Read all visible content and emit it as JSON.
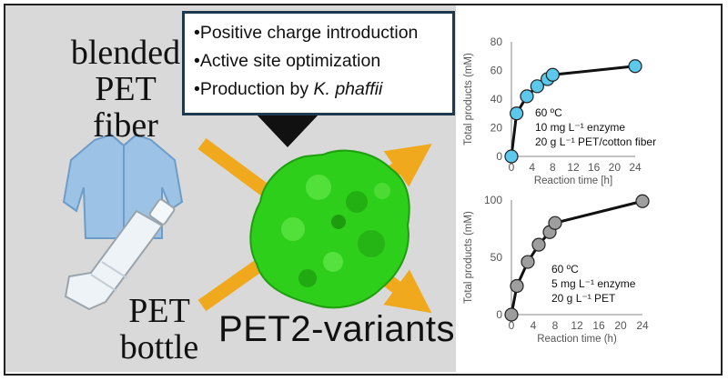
{
  "labels": {
    "blended_pet_fiber": [
      "blended",
      "PET",
      "fiber"
    ],
    "pet_bottle": [
      "PET",
      "bottle"
    ]
  },
  "callout": {
    "lines": [
      {
        "prefix": "•Positive charge introduction",
        "italic": ""
      },
      {
        "prefix": "•Active site optimization",
        "italic": ""
      },
      {
        "prefix": "•Production by ",
        "italic": "K. phaffii"
      }
    ]
  },
  "title": "PET2-variants",
  "colors": {
    "panel_bg": "#d9d9d9",
    "arrow": "#f0a91c",
    "enzyme": "#2ecf1a",
    "shirt": "#9cc3e6",
    "top_marker": "#5bc8ec",
    "bottom_marker": "#9e9e9e"
  },
  "icons": [
    "shirt-icon",
    "bottle-icon",
    "protein-surface-icon"
  ],
  "chart_data": [
    {
      "type": "line",
      "x": [
        0,
        1,
        3,
        5,
        7,
        8,
        24
      ],
      "values": [
        0,
        30,
        42,
        49,
        54,
        57,
        63
      ],
      "xlabel": "Reaction time [h]",
      "ylabel": "Total products  (mM)",
      "xticks": [
        0,
        4,
        8,
        12,
        16,
        20,
        24
      ],
      "yticks": [
        0,
        20,
        40,
        60,
        80
      ],
      "xlim": [
        0,
        24
      ],
      "ylim": [
        0,
        80
      ],
      "annotation": [
        "60 ºC",
        "10 mg L⁻¹ enzyme",
        "20 g L⁻¹ PET/cotton fiber"
      ],
      "marker_color": "#5bc8ec"
    },
    {
      "type": "line",
      "x": [
        0,
        1,
        3,
        5,
        7,
        8,
        24
      ],
      "values": [
        0,
        25,
        46,
        61,
        72,
        80,
        99
      ],
      "xlabel": "Reaction time (h)",
      "ylabel": "Total products (mM)",
      "xticks": [
        0,
        4,
        8,
        12,
        16,
        20,
        24
      ],
      "yticks": [
        0,
        50,
        100
      ],
      "xlim": [
        0,
        24
      ],
      "ylim": [
        0,
        100
      ],
      "annotation": [
        "60 ºC",
        "5 mg L⁻¹ enzyme",
        "20 g L⁻¹ PET"
      ],
      "marker_color": "#9e9e9e"
    }
  ]
}
